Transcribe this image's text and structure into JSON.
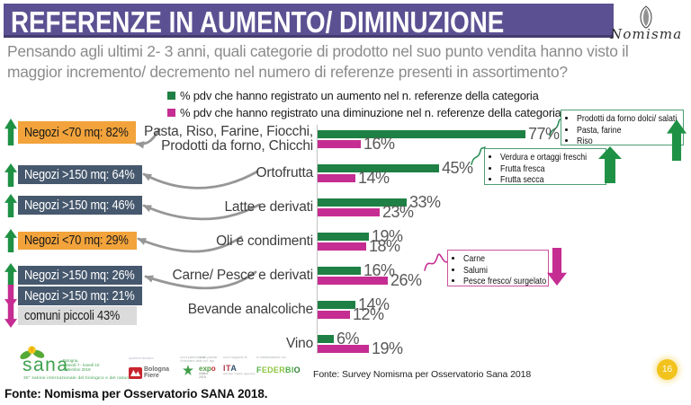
{
  "title": "REFERENZE IN AUMENTO/ DIMINUZIONE",
  "logo": {
    "name": "Nomisma"
  },
  "question_lines": [
    "Pensando agli ultimi 2- 3 anni, quali categorie di prodotto nel suo punto vendita hanno visto il",
    "maggior incremento/ decremento nel numero di referenze presenti in assortimento?"
  ],
  "legend": [
    {
      "label": "% pdv che hanno registrato un aumento nel n. referenze della categoria",
      "color": "green"
    },
    {
      "label": "% pdv che hanno registrato una diminuzione nel n. referenze della categoria",
      "color": "magenta"
    }
  ],
  "chart_data": {
    "type": "bar",
    "orientation": "horizontal",
    "categories": [
      "Pasta, Riso, Farine, Fiocchi, Prodotti da forno, Chicchi",
      "Ortofrutta",
      "Latte e derivati",
      "Oli e condimenti",
      "Carne/ Pesce e derivati",
      "Bevande analcoliche",
      "Vino"
    ],
    "category_label_lines": [
      [
        "Pasta, Riso, Farine, Fiocchi,",
        "Prodotti da forno, Chicchi"
      ],
      [
        "Ortofrutta"
      ],
      [
        "Latte e derivati"
      ],
      [
        "Oli e condimenti"
      ],
      [
        "Carne/ Pesce e derivati"
      ],
      [
        "Bevande analcoliche"
      ],
      [
        "Vino"
      ]
    ],
    "series": [
      {
        "name": "% pdv che hanno registrato un aumento nel n. referenze della categoria",
        "color": "green",
        "values": [
          77,
          45,
          33,
          19,
          16,
          14,
          6
        ]
      },
      {
        "name": "% pdv che hanno registrato una diminuzione nel n. referenze della categoria",
        "color": "magenta",
        "values": [
          16,
          14,
          23,
          18,
          26,
          12,
          19
        ]
      }
    ],
    "value_suffix": "%",
    "xlim": [
      0,
      100
    ],
    "grid": false,
    "legend_position": "top"
  },
  "badges": [
    {
      "text": "Negozi <70 mq: 82%",
      "style": "orange",
      "arrow": "up"
    },
    {
      "text": "Negozi >150 mq: 64%",
      "style": "slate",
      "arrow": "up"
    },
    {
      "text": "Negozi >150 mq: 46%",
      "style": "slate",
      "arrow": "up"
    },
    {
      "text": "Negozi <70 mq: 29%",
      "style": "orange",
      "arrow": "up"
    },
    {
      "text": "Negozi >150 mq: 26%",
      "style": "slate",
      "arrow": "up"
    },
    {
      "text": "Negozi >150 mq: 21%",
      "style": "slate",
      "arrow": "down"
    },
    {
      "text": "comuni piccoli 43%",
      "style": "gray",
      "arrow": "down"
    }
  ],
  "callouts": [
    {
      "items": [
        "Prodotti da forno dolci/ salati",
        "Pasta, farine",
        "Riso"
      ],
      "style": "green",
      "arrow": "up"
    },
    {
      "items": [
        "Verdura e ortaggi freschi",
        "Frutta fresca",
        "Frutta secca"
      ],
      "style": "green",
      "arrow": "up"
    },
    {
      "items": [
        "Carne",
        "Salumi",
        "Pesce fresco/ surgelato"
      ],
      "style": "magenta",
      "arrow": "down"
    }
  ],
  "footer": {
    "sana": {
      "word": "sana",
      "dates": [
        "Bologna,",
        "venerdì 7 - lunedì 10",
        "settembre 2018"
      ],
      "subtitle": "30° salone internazionale del biologico e del naturale"
    },
    "partners": [
      "Bologna Fiere",
      "",
      "",
      "",
      "FEDERBIO"
    ],
    "fonte": "Fonte: Survey Nomisma per Osservatorio Sana 2018",
    "page_number": "16"
  },
  "caption": "Fonte: Nomisma per Osservatorio SANA 2018.",
  "colors": {
    "purple": "#5b5192",
    "purple_dark": "#453b6e",
    "green": "#1e8044",
    "green_arrow": "#1f9145",
    "magenta": "#c52d92",
    "orange": "#f2a33b",
    "slate": "#46586d",
    "gray_text": "#8b8b8b"
  }
}
